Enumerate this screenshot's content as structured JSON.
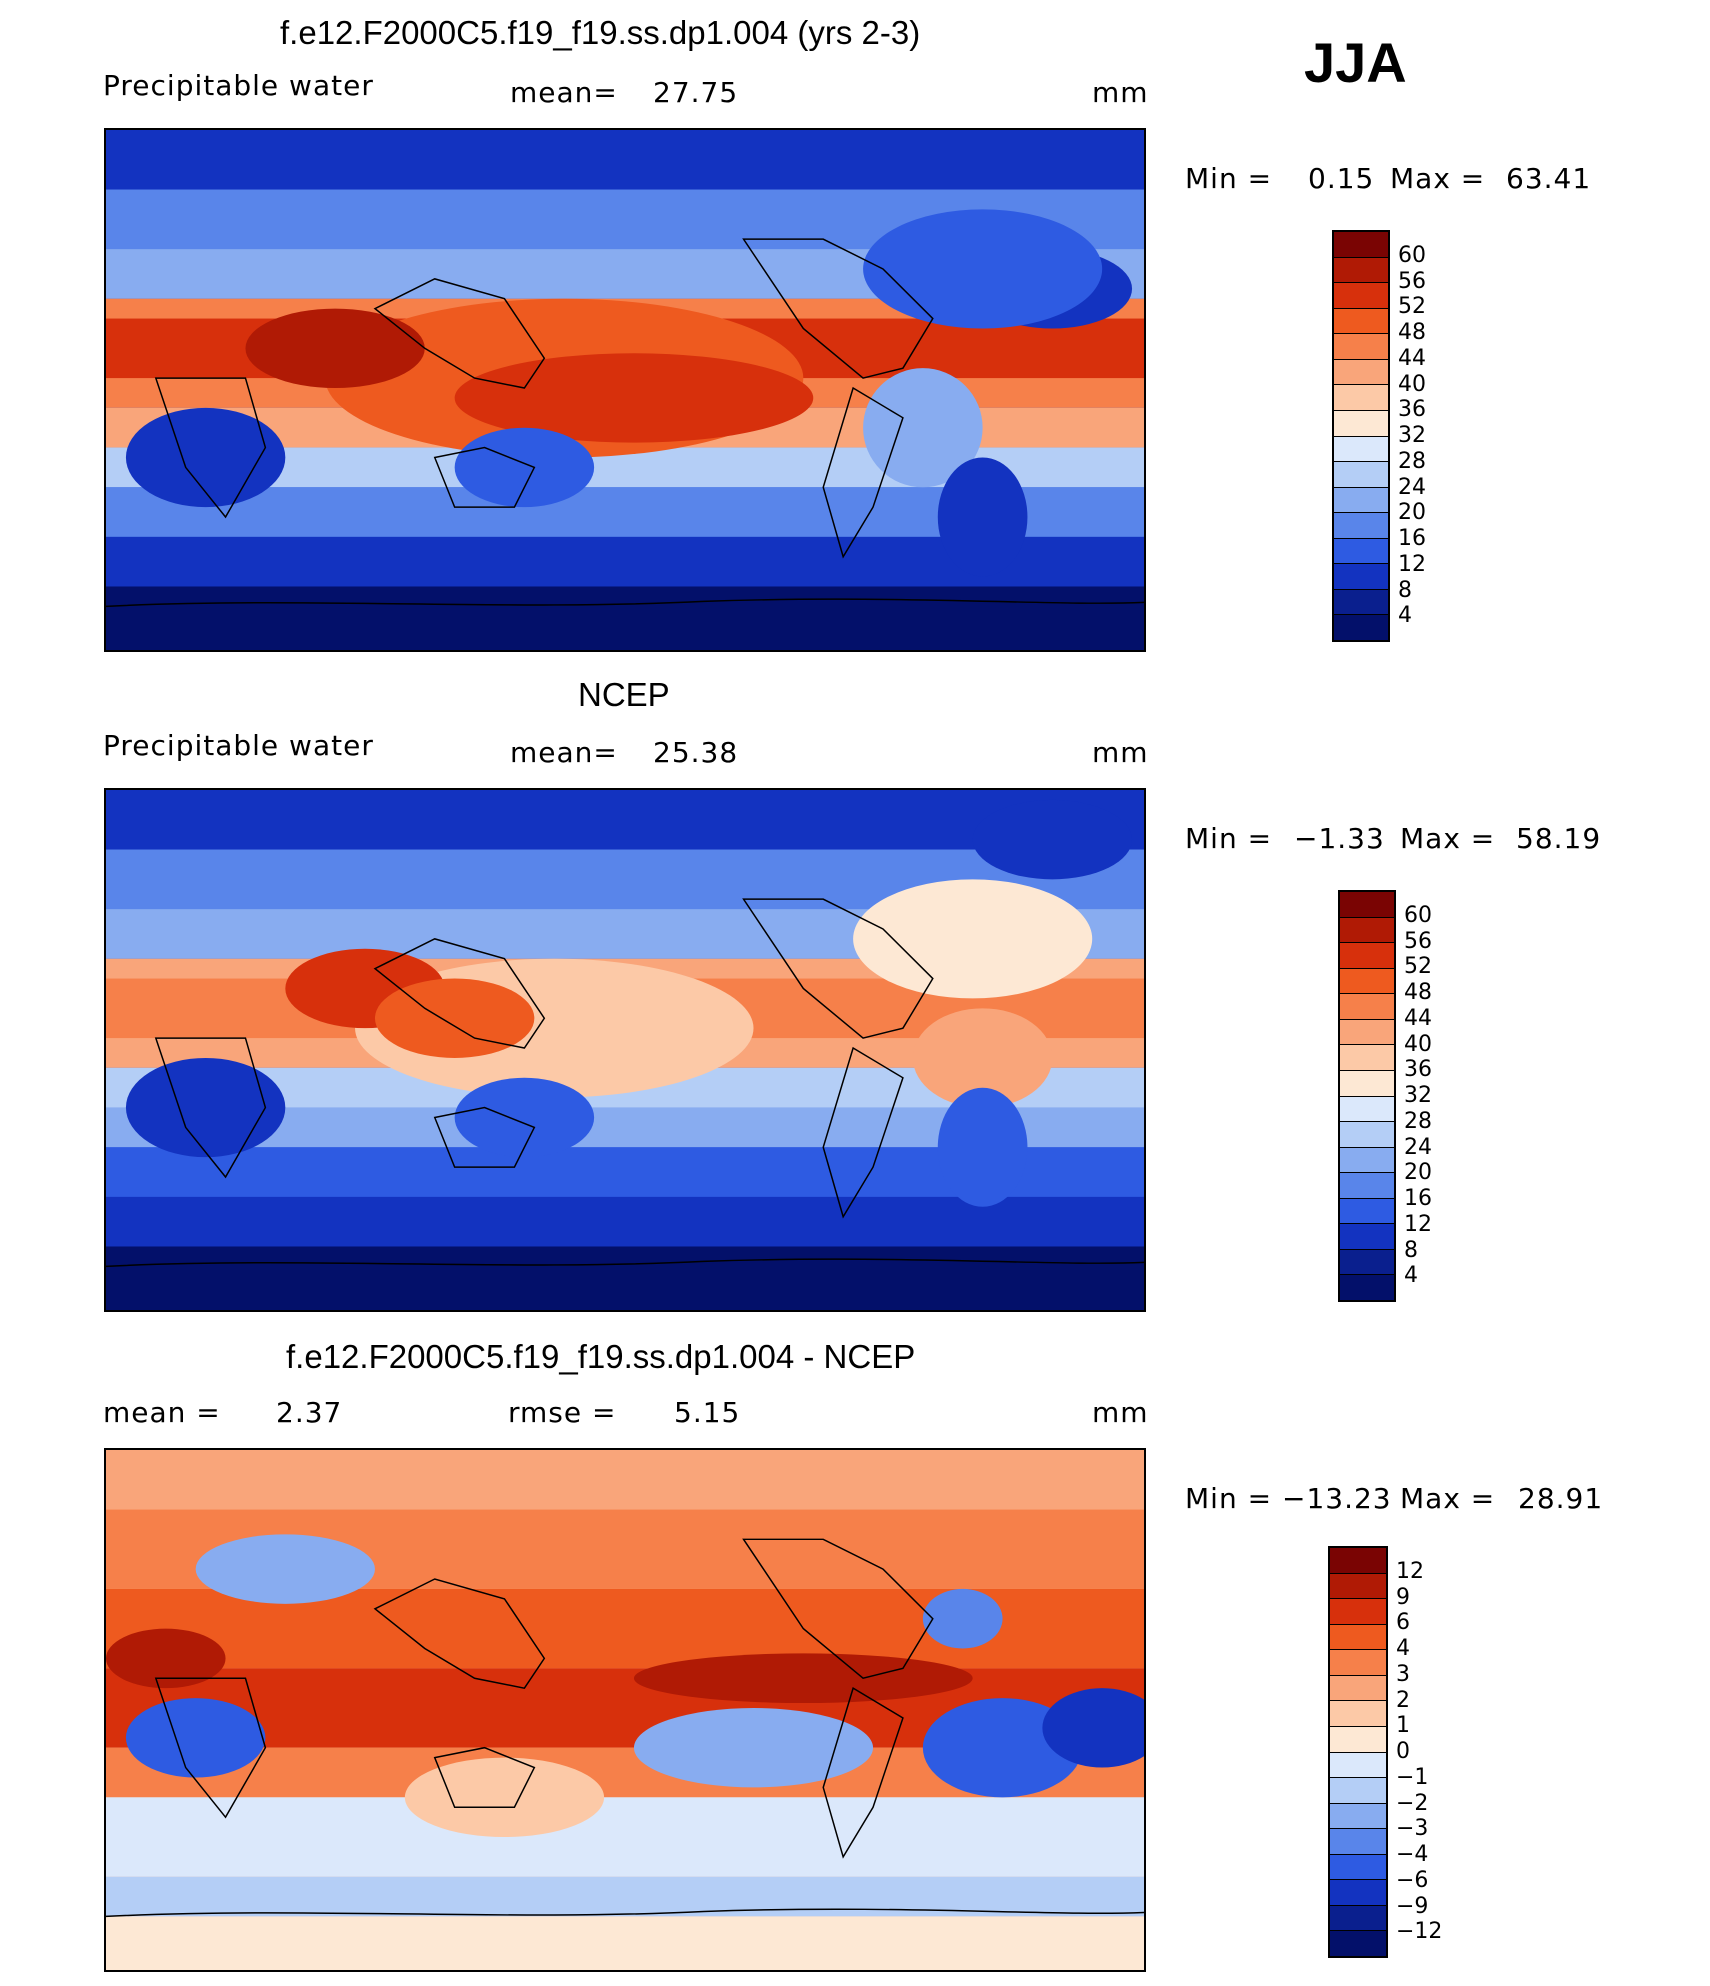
{
  "season": "JJA",
  "units": "mm",
  "panels": [
    {
      "title": "f.e12.F2000C5.f19_f19.ss.dp1.004 (yrs 2-3)",
      "left_label": "Precipitable water",
      "stat1_label": "mean=",
      "stat1_value": "27.75",
      "stat2_label": "",
      "stat2_value": "",
      "units": "mm",
      "min_label": "Min =",
      "min_value": "0.15",
      "max_label": "Max =",
      "max_value": "63.41",
      "colorbar_ticks": [
        "60",
        "56",
        "52",
        "48",
        "44",
        "40",
        "36",
        "32",
        "28",
        "24",
        "20",
        "16",
        "12",
        "8",
        "4"
      ]
    },
    {
      "title": "NCEP",
      "left_label": "Precipitable water",
      "stat1_label": "mean=",
      "stat1_value": "25.38",
      "stat2_label": "",
      "stat2_value": "",
      "units": "mm",
      "min_label": "Min =",
      "min_value": "−1.33",
      "max_label": "Max =",
      "max_value": "58.19",
      "colorbar_ticks": [
        "60",
        "56",
        "52",
        "48",
        "44",
        "40",
        "36",
        "32",
        "28",
        "24",
        "20",
        "16",
        "12",
        "8",
        "4"
      ]
    },
    {
      "title": "f.e12.F2000C5.f19_f19.ss.dp1.004 - NCEP",
      "left_label": "mean =",
      "stat1_label": "",
      "stat1_value": "2.37",
      "stat2_label": "rmse =",
      "stat2_value": "5.15",
      "units": "mm",
      "min_label": "Min =",
      "min_value": "−13.23",
      "max_label": "Max =",
      "max_value": "28.91",
      "colorbar_ticks": [
        "12",
        "9",
        "6",
        "4",
        "3",
        "2",
        "1",
        "0",
        "−1",
        "−2",
        "−3",
        "−4",
        "−6",
        "−9",
        "−12"
      ]
    }
  ],
  "colorbar_colors": [
    "#7a0403",
    "#b01a05",
    "#d7300c",
    "#ee5a1f",
    "#f6804a",
    "#f9a57a",
    "#fcc9a7",
    "#fde8d4",
    "#dbe8fb",
    "#b4cef6",
    "#88acf0",
    "#5985ea",
    "#2e5be2",
    "#1333c0",
    "#0a1f8e",
    "#03106a"
  ],
  "map_palette": {
    "deep_blue": "#03106a",
    "dark_blue": "#0a1f8e",
    "blue": "#1333c0",
    "mid_blue": "#2e5be2",
    "light_blue": "#5985ea",
    "pale_blue": "#88acf0",
    "very_pale_blue": "#b4cef6",
    "ice_blue": "#dbe8fb",
    "cream": "#fde8d4",
    "peach": "#fcc9a7",
    "salmon": "#f9a57a",
    "orange": "#f6804a",
    "red_orange": "#ee5a1f",
    "red": "#d7300c",
    "dark_red": "#b01a05"
  }
}
